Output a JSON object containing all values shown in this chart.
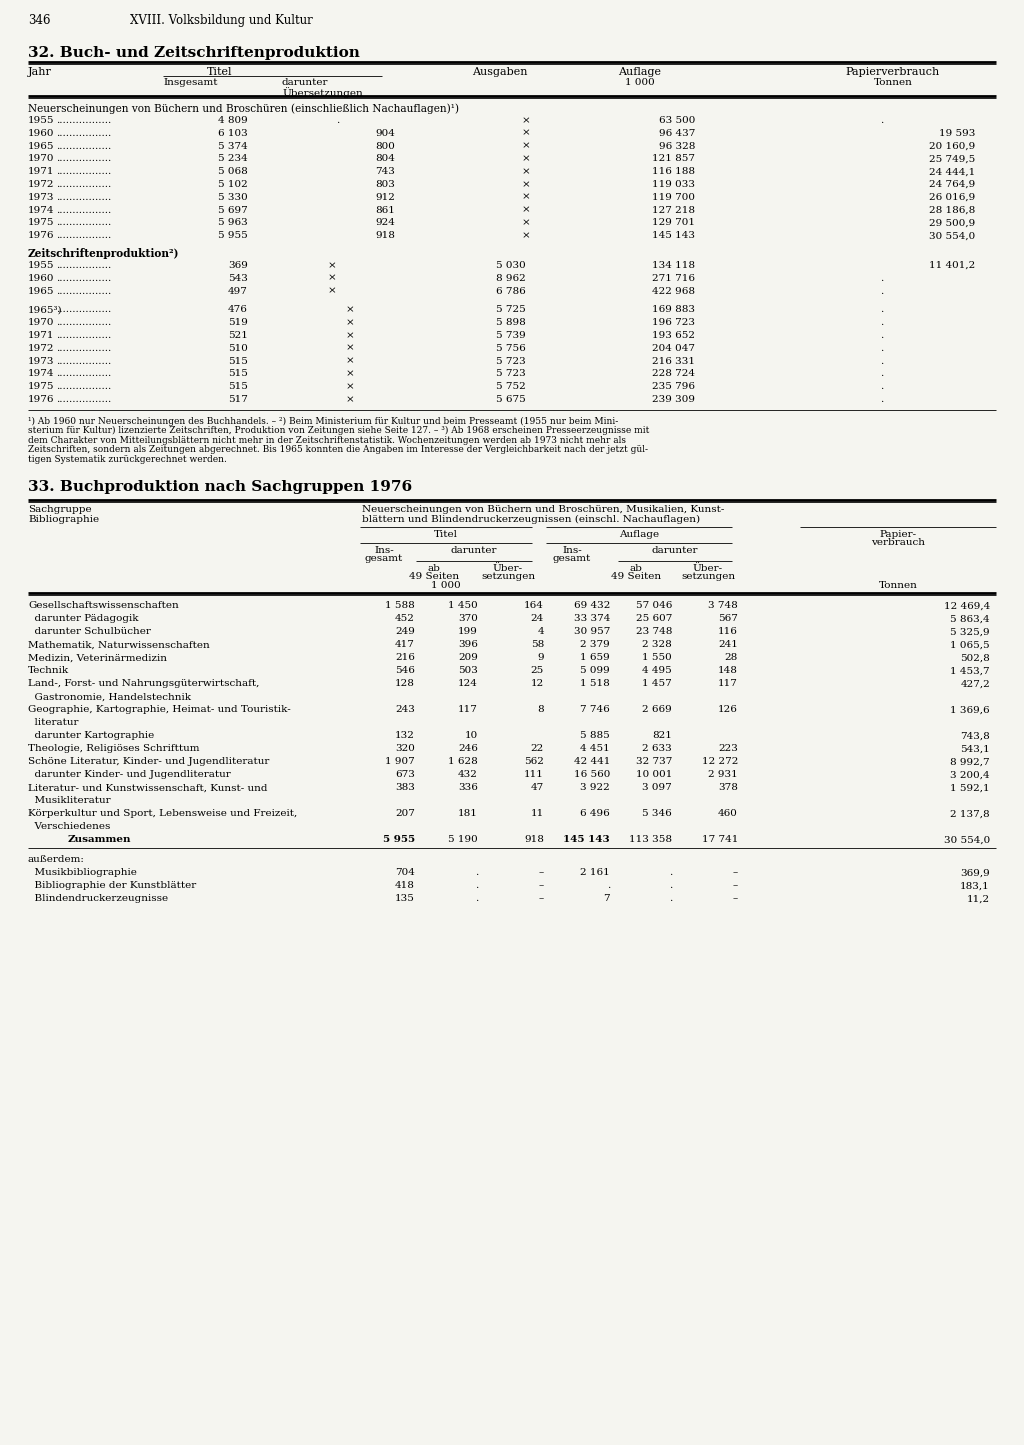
{
  "page_number": "346",
  "page_header": "XVIII. Volksbildung und Kultur",
  "bg_color": "#f5f5f0",
  "text_color": "#000000",
  "table1_title": "32. Buch- und Zeitschriftenproduktion",
  "table1_section1_title": "Neuerscheinungen von Büchern und Broschüren (einschließlich Nachauflagen)¹)",
  "table1_section1_rows": [
    [
      "1955",
      "4 809",
      ".",
      "×",
      "63 500",
      "."
    ],
    [
      "1960",
      "6 103",
      "904",
      "×",
      "96 437",
      "19 593"
    ],
    [
      "1965",
      "5 374",
      "800",
      "×",
      "96 328",
      "20 160,9"
    ],
    [
      "1970",
      "5 234",
      "804",
      "×",
      "121 857",
      "25 749,5"
    ],
    [
      "1971",
      "5 068",
      "743",
      "×",
      "116 188",
      "24 444,1"
    ],
    [
      "1972",
      "5 102",
      "803",
      "×",
      "119 033",
      "24 764,9"
    ],
    [
      "1973",
      "5 330",
      "912",
      "×",
      "119 700",
      "26 016,9"
    ],
    [
      "1974",
      "5 697",
      "861",
      "×",
      "127 218",
      "28 186,8"
    ],
    [
      "1975",
      "5 963",
      "924",
      "×",
      "129 701",
      "29 500,9"
    ],
    [
      "1976",
      "5 955",
      "918",
      "×",
      "145 143",
      "30 554,0"
    ]
  ],
  "table1_section2_title": "Zeitschriftenproduktion²)",
  "table1_section2a_rows": [
    [
      "1955",
      "369",
      "×",
      "5 030",
      "134 118",
      "11 401,2"
    ],
    [
      "1960",
      "543",
      "×",
      "8 962",
      "271 716",
      "."
    ],
    [
      "1965",
      "497",
      "×",
      "6 786",
      "422 968",
      "."
    ]
  ],
  "table1_section2b_rows": [
    [
      "1965³)",
      "476",
      "×",
      "5 725",
      "169 883",
      "."
    ],
    [
      "1970",
      "519",
      "×",
      "5 898",
      "196 723",
      "."
    ],
    [
      "1971",
      "521",
      "×",
      "5 739",
      "193 652",
      "."
    ],
    [
      "1972",
      "510",
      "×",
      "5 756",
      "204 047",
      "."
    ],
    [
      "1973",
      "515",
      "×",
      "5 723",
      "216 331",
      "."
    ],
    [
      "1974",
      "515",
      "×",
      "5 723",
      "228 724",
      "."
    ],
    [
      "1975",
      "515",
      "×",
      "5 752",
      "235 796",
      "."
    ],
    [
      "1976",
      "517",
      "×",
      "5 675",
      "239 309",
      "."
    ]
  ],
  "table1_footnote_lines": [
    "¹) Ab 1960 nur Neuerscheinungen des Buchhandels. – ²) Beim Ministerium für Kultur und beim Presseamt (1955 nur beim Mini-",
    "sterium für Kultur) lizenzierte Zeitschriften, Produktion von Zeitungen siehe Seite 127. – ³) Ab 1968 erscheinen Presseerzeugnisse mit",
    "dem Charakter von Mitteilungsblättern nicht mehr in der Zeitschriftenstatistik. Wochenzeitungen werden ab 1973 nicht mehr als",
    "Zeitschriften, sondern als Zeitungen abgerechnet. Bis 1965 konnten die Angaben im Interesse der Vergleichbarkeit nach der jetzt gül-",
    "tigen Systematik zurückgerechnet werden."
  ],
  "table2_title": "33. Buchproduktion nach Sachgruppen 1976",
  "table2_right_header_line1": "Neuerscheinungen von Büchern und Broschüren, Musikalien, Kunst-",
  "table2_right_header_line2": "blättern und Blindendruckerzeugnissen (einschl. Nachauflagen)",
  "table2_rows": [
    [
      "Gesellschaftswissenschaften",
      "1 588",
      "1 450",
      "164",
      "69 432",
      "57 046",
      "3 748",
      "12 469,4"
    ],
    [
      "  darunter Pädagogik",
      "452",
      "370",
      "24",
      "33 374",
      "25 607",
      "567",
      "5 863,4"
    ],
    [
      "  darunter Schulbücher",
      "249",
      "199",
      "4",
      "30 957",
      "23 748",
      "116",
      "5 325,9"
    ],
    [
      "Mathematik, Naturwissenschaften",
      "417",
      "396",
      "58",
      "2 379",
      "2 328",
      "241",
      "1 065,5"
    ],
    [
      "Medizin, Veterinärmedizin",
      "216",
      "209",
      "9",
      "1 659",
      "1 550",
      "28",
      "502,8"
    ],
    [
      "Technik",
      "546",
      "503",
      "25",
      "5 099",
      "4 495",
      "148",
      "1 453,7"
    ],
    [
      "Land-, Forst- und Nahrungsgüterwirtschaft,",
      "128",
      "124",
      "12",
      "1 518",
      "1 457",
      "117",
      "427,2"
    ],
    [
      "  Gastronomie, Handelstechnik",
      "",
      "",
      "",
      "",
      "",
      "",
      ""
    ],
    [
      "Geographie, Kartographie, Heimat- und Touristik-",
      "243",
      "117",
      "8",
      "7 746",
      "2 669",
      "126",
      "1 369,6"
    ],
    [
      "  literatur",
      "",
      "",
      "",
      "",
      "",
      "",
      ""
    ],
    [
      "  darunter Kartographie",
      "132",
      "10",
      "",
      "5 885",
      "821",
      "",
      "743,8"
    ],
    [
      "Theologie, Religiöses Schrifttum",
      "320",
      "246",
      "22",
      "4 451",
      "2 633",
      "223",
      "543,1"
    ],
    [
      "Schöne Literatur, Kinder- und Jugendliteratur",
      "1 907",
      "1 628",
      "562",
      "42 441",
      "32 737",
      "12 272",
      "8 992,7"
    ],
    [
      "  darunter Kinder- und Jugendliteratur",
      "673",
      "432",
      "111",
      "16 560",
      "10 001",
      "2 931",
      "3 200,4"
    ],
    [
      "Literatur- und Kunstwissenschaft, Kunst- und",
      "383",
      "336",
      "47",
      "3 922",
      "3 097",
      "378",
      "1 592,1"
    ],
    [
      "  Musikliteratur",
      "",
      "",
      "",
      "",
      "",
      "",
      ""
    ],
    [
      "Körperkultur und Sport, Lebensweise und Freizeit,",
      "207",
      "181",
      "11",
      "6 496",
      "5 346",
      "460",
      "2 137,8"
    ],
    [
      "  Verschiedenes",
      "",
      "",
      "",
      "",
      "",
      "",
      ""
    ],
    [
      "Zusammen",
      "5 955",
      "5 190",
      "918",
      "145 143",
      "113 358",
      "17 741",
      "30 554,0"
    ]
  ],
  "table2_extra_label": "außerdem:",
  "table2_extra_rows": [
    [
      "  Musikbibliographie",
      "704",
      ".",
      "–",
      "2 161",
      ".",
      "–",
      "369,9"
    ],
    [
      "  Bibliographie der Kunstblätter",
      "418",
      ".",
      "–",
      ".",
      ".",
      "–",
      "183,1"
    ],
    [
      "  Blindendruckerzeugnisse",
      "135",
      ".",
      "–",
      "7",
      ".",
      "–",
      "11,2"
    ]
  ]
}
